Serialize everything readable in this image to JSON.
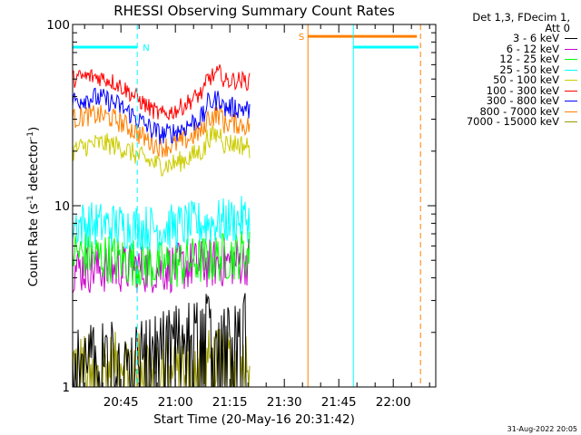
{
  "chart_data": {
    "type": "line",
    "title": "RHESSI Observing Summary Count Rates",
    "xlabel": "Start Time (20-May-16 20:31:42)",
    "ylabel": "Count Rate (s⁻¹ detector⁻¹)",
    "ylabel_parts": {
      "main": "Count Rate (s",
      "exp1": "-1",
      "mid": " detector",
      "exp2": "-1",
      "end": ")"
    },
    "yscale": "log",
    "ylim": [
      1,
      100
    ],
    "xlim": [
      "20:31:42",
      "22:11:42"
    ],
    "y_tick_labels": [
      "1",
      "10",
      "100"
    ],
    "x_tick_labels": [
      "20:45",
      "21:00",
      "21:15",
      "21:30",
      "21:45",
      "22:00"
    ],
    "legend_header": [
      "Det 1,3, FDecim 1,",
      "Att 0"
    ],
    "legend_placement": "outside-right",
    "data_end": "21:20:30",
    "series": [
      {
        "name": "3 - 6 keV",
        "color": "#000000",
        "start_level": 1.5,
        "mid_level": 1.8,
        "end_level": 2.8
      },
      {
        "name": "6 - 12 keV",
        "color": "#cc00cc",
        "start_level": 4.5,
        "mid_level": 4.5,
        "end_level": 5.0
      },
      {
        "name": "12 - 25 keV",
        "color": "#00ff00",
        "start_level": 5.5,
        "mid_level": 4.6,
        "end_level": 5.5
      },
      {
        "name": "25 - 50 keV",
        "color": "#00ffff",
        "start_level": 8.0,
        "mid_level": 7.5,
        "end_level": 8.5
      },
      {
        "name": "50 - 100 keV",
        "color": "#cccc00",
        "start_level": 20,
        "mid_level": 19,
        "end_level": 20
      },
      {
        "name": "100 - 300 keV",
        "color": "#ff0000",
        "start_level": 50,
        "mid_level": 36,
        "end_level": 46
      },
      {
        "name": "300 - 800 keV",
        "color": "#0000ff",
        "start_level": 38,
        "mid_level": 28,
        "end_level": 32
      },
      {
        "name": "800 - 7000 keV",
        "color": "#ff8000",
        "start_level": 30,
        "mid_level": 24,
        "end_level": 26
      },
      {
        "name": "7000 - 15000 keV",
        "color": "#999900",
        "start_level": 1.4,
        "mid_level": 1.4,
        "end_level": 1.5
      }
    ],
    "annotations": [
      {
        "label": "N",
        "color": "#00ffff",
        "bar_start": "20:31:42",
        "bar_end": "20:49:30",
        "y": 75,
        "dashed_line_at": "20:49:30"
      },
      {
        "label": "S",
        "color": "#ff8000",
        "bar_start": "21:36:30",
        "bar_end": "22:06:30",
        "y": 86,
        "solid_line_at": "21:36:30",
        "dashed_line_at": "22:07:30"
      },
      {
        "label": "",
        "color": "#00ffff",
        "bar_start": "21:49:00",
        "bar_end": "22:07:00",
        "y": 75,
        "solid_line_at": "21:49:00"
      }
    ]
  },
  "footer": {
    "timestamp": "31-Aug-2022 20:05"
  }
}
